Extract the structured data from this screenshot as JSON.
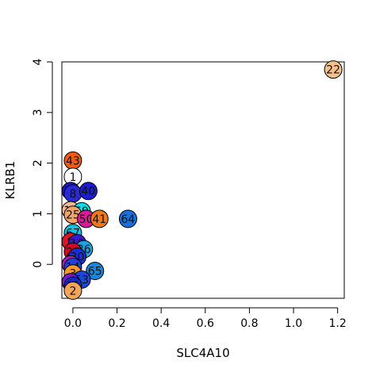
{
  "chart_data": {
    "type": "scatter",
    "title": "",
    "xlabel": "SLC4A10",
    "ylabel": "KLRB1",
    "xlim": [
      -0.05,
      1.23
    ],
    "ylim": [
      -0.67,
      4.0
    ],
    "x_ticks": [
      "0.0",
      "0.2",
      "0.4",
      "0.6",
      "0.8",
      "1.0",
      "1.2"
    ],
    "x_tick_values": [
      0.0,
      0.2,
      0.4,
      0.6,
      0.8,
      1.0,
      1.2
    ],
    "y_ticks": [
      "0",
      "1",
      "2",
      "3",
      "4"
    ],
    "y_tick_values": [
      0,
      1,
      2,
      3,
      4
    ],
    "grid": false,
    "legend": "none",
    "points": [
      {
        "label": "22",
        "x": 1.18,
        "y": 3.85,
        "color": "#f4c08c"
      },
      {
        "label": "43",
        "x": 0.0,
        "y": 2.05,
        "color": "#f25a14"
      },
      {
        "label": "1",
        "x": 0.0,
        "y": 1.73,
        "color": "#ffffff"
      },
      {
        "label": "33",
        "x": -0.01,
        "y": 1.45,
        "color": "#1c14d9"
      },
      {
        "label": "8",
        "x": 0.0,
        "y": 1.4,
        "color": "#2a2ad4"
      },
      {
        "label": "40",
        "x": 0.07,
        "y": 1.45,
        "color": "#1d1ad6"
      },
      {
        "label": "12",
        "x": -0.01,
        "y": 1.07,
        "color": "#f7b896"
      },
      {
        "label": "59",
        "x": 0.04,
        "y": 1.05,
        "color": "#0fd9e8"
      },
      {
        "label": "25",
        "x": 0.0,
        "y": 0.98,
        "color": "#f0a56c"
      },
      {
        "label": "50",
        "x": 0.06,
        "y": 0.9,
        "color": "#d91a99"
      },
      {
        "label": "41",
        "x": 0.12,
        "y": 0.9,
        "color": "#f07818"
      },
      {
        "label": "64",
        "x": 0.25,
        "y": 0.9,
        "color": "#1a6fd9"
      },
      {
        "label": "67",
        "x": 0.0,
        "y": 0.62,
        "color": "#15c3e0"
      },
      {
        "label": "9",
        "x": -0.01,
        "y": 0.45,
        "color": "#e0112a"
      },
      {
        "label": "18",
        "x": 0.02,
        "y": 0.42,
        "color": "#3a1ad0"
      },
      {
        "label": "36",
        "x": 0.05,
        "y": 0.3,
        "color": "#1aa3e0"
      },
      {
        "label": "21",
        "x": 0.0,
        "y": 0.25,
        "color": "#d40a1e"
      },
      {
        "label": "30",
        "x": 0.02,
        "y": 0.15,
        "color": "#1a2fd9"
      },
      {
        "label": "7",
        "x": -0.01,
        "y": 0.0,
        "color": "#b01ac7"
      },
      {
        "label": "14",
        "x": 0.0,
        "y": -0.05,
        "color": "#2340d9"
      },
      {
        "label": "65",
        "x": 0.1,
        "y": -0.13,
        "color": "#1a86d9"
      },
      {
        "label": "3",
        "x": 0.0,
        "y": -0.18,
        "color": "#f29a2e"
      },
      {
        "label": "53",
        "x": 0.04,
        "y": -0.3,
        "color": "#1a48d9"
      },
      {
        "label": "5",
        "x": -0.01,
        "y": -0.35,
        "color": "#7a1ad0"
      },
      {
        "label": "11",
        "x": 0.0,
        "y": -0.42,
        "color": "#1a28c8"
      },
      {
        "label": "2",
        "x": 0.0,
        "y": -0.52,
        "color": "#f4a55c"
      }
    ]
  }
}
